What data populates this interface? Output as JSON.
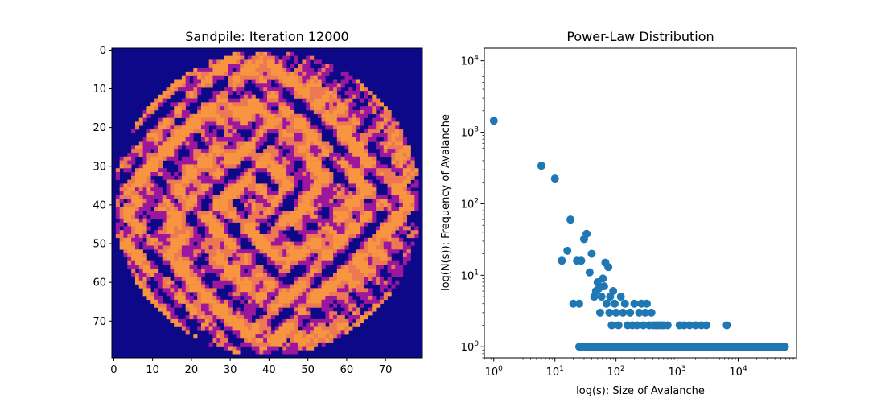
{
  "chart_data": [
    {
      "type": "heatmap",
      "title": "Sandpile: Iteration 12000",
      "grid_size": 80,
      "colormap": "plasma",
      "levels": [
        0,
        1,
        2,
        3
      ],
      "level_colors": [
        "#0d0887",
        "#9c179e",
        "#ed7953",
        "#f89540"
      ],
      "background_color": "#0d0887",
      "disk": {
        "center": [
          40,
          40
        ],
        "radius": 39.5
      },
      "x_ticks": [
        0,
        10,
        20,
        30,
        40,
        50,
        60,
        70
      ],
      "y_ticks": [
        0,
        10,
        20,
        30,
        40,
        50,
        60,
        70
      ],
      "x_tick_labels": [
        "0",
        "10",
        "20",
        "30",
        "40",
        "50",
        "60",
        "70"
      ],
      "y_tick_labels": [
        "0",
        "10",
        "20",
        "30",
        "40",
        "50",
        "60",
        "70"
      ],
      "xlim": [
        -0.5,
        79.5
      ],
      "ylim": [
        79.5,
        -0.5
      ]
    },
    {
      "type": "scatter",
      "title": "Power-Law Distribution",
      "xlabel": "log(s): Size of Avalanche",
      "ylabel": "log(N(s)): Frequency of Avalanche",
      "xscale": "log",
      "yscale": "log",
      "xlim": [
        0.7,
        90000
      ],
      "ylim": [
        0.7,
        15000
      ],
      "grid": false,
      "marker_color": "#1f77b4",
      "x_tick_values": [
        1,
        10,
        100,
        1000,
        10000
      ],
      "x_tick_labels": [
        {
          "base": "10",
          "exp": "0"
        },
        {
          "base": "10",
          "exp": "1"
        },
        {
          "base": "10",
          "exp": "2"
        },
        {
          "base": "10",
          "exp": "3"
        },
        {
          "base": "10",
          "exp": "4"
        }
      ],
      "y_tick_values": [
        1,
        10,
        100,
        1000,
        10000
      ],
      "y_tick_labels": [
        {
          "base": "10",
          "exp": "0"
        },
        {
          "base": "10",
          "exp": "1"
        },
        {
          "base": "10",
          "exp": "2"
        },
        {
          "base": "10",
          "exp": "3"
        },
        {
          "base": "10",
          "exp": "4"
        }
      ],
      "points": [
        [
          1,
          1450
        ],
        [
          6,
          340
        ],
        [
          10,
          225
        ],
        [
          13,
          16
        ],
        [
          16,
          22
        ],
        [
          18,
          60
        ],
        [
          20,
          4
        ],
        [
          23,
          16
        ],
        [
          25,
          4
        ],
        [
          27,
          16
        ],
        [
          30,
          32
        ],
        [
          33,
          38
        ],
        [
          37,
          11
        ],
        [
          40,
          20
        ],
        [
          44,
          5
        ],
        [
          47,
          6
        ],
        [
          50,
          8
        ],
        [
          52,
          6.5
        ],
        [
          55,
          3
        ],
        [
          58,
          5
        ],
        [
          61,
          9
        ],
        [
          64,
          7
        ],
        [
          67,
          15
        ],
        [
          70,
          4
        ],
        [
          75,
          13
        ],
        [
          78,
          3
        ],
        [
          80,
          5
        ],
        [
          85,
          2
        ],
        [
          90,
          6
        ],
        [
          95,
          4
        ],
        [
          100,
          3
        ],
        [
          110,
          2
        ],
        [
          120,
          5
        ],
        [
          130,
          3
        ],
        [
          140,
          4
        ],
        [
          155,
          2
        ],
        [
          170,
          3
        ],
        [
          185,
          2
        ],
        [
          200,
          4
        ],
        [
          220,
          2
        ],
        [
          240,
          3
        ],
        [
          260,
          4
        ],
        [
          280,
          2
        ],
        [
          300,
          3
        ],
        [
          320,
          4
        ],
        [
          350,
          2
        ],
        [
          380,
          3
        ],
        [
          410,
          2
        ],
        [
          450,
          2
        ],
        [
          500,
          2
        ],
        [
          550,
          2
        ],
        [
          600,
          2
        ],
        [
          700,
          2
        ],
        [
          1100,
          2
        ],
        [
          1300,
          2
        ],
        [
          1600,
          2
        ],
        [
          2000,
          2
        ],
        [
          2500,
          2
        ],
        [
          3000,
          2
        ],
        [
          6500,
          2
        ],
        [
          25,
          1
        ],
        [
          28,
          1
        ],
        [
          32,
          1
        ],
        [
          36,
          1
        ],
        [
          40,
          1
        ],
        [
          45,
          1
        ],
        [
          50,
          1
        ],
        [
          55,
          1
        ],
        [
          60,
          1
        ],
        [
          66,
          1
        ],
        [
          72,
          1
        ],
        [
          79,
          1
        ],
        [
          87,
          1
        ],
        [
          95,
          1
        ],
        [
          105,
          1
        ],
        [
          115,
          1
        ],
        [
          126,
          1
        ],
        [
          138,
          1
        ],
        [
          152,
          1
        ],
        [
          167,
          1
        ],
        [
          183,
          1
        ],
        [
          201,
          1
        ],
        [
          221,
          1
        ],
        [
          243,
          1
        ],
        [
          267,
          1
        ],
        [
          293,
          1
        ],
        [
          322,
          1
        ],
        [
          354,
          1
        ],
        [
          389,
          1
        ],
        [
          428,
          1
        ],
        [
          470,
          1
        ],
        [
          517,
          1
        ],
        [
          568,
          1
        ],
        [
          624,
          1
        ],
        [
          686,
          1
        ],
        [
          754,
          1
        ],
        [
          829,
          1
        ],
        [
          911,
          1
        ],
        [
          1001,
          1
        ],
        [
          1100,
          1
        ],
        [
          1209,
          1
        ],
        [
          1329,
          1
        ],
        [
          1460,
          1
        ],
        [
          1605,
          1
        ],
        [
          1764,
          1
        ],
        [
          1939,
          1
        ],
        [
          2131,
          1
        ],
        [
          2342,
          1
        ],
        [
          2574,
          1
        ],
        [
          2829,
          1
        ],
        [
          3109,
          1
        ],
        [
          3417,
          1
        ],
        [
          3755,
          1
        ],
        [
          4127,
          1
        ],
        [
          4536,
          1
        ],
        [
          4985,
          1
        ],
        [
          5479,
          1
        ],
        [
          6022,
          1
        ],
        [
          6618,
          1
        ],
        [
          7274,
          1
        ],
        [
          7994,
          1
        ],
        [
          8786,
          1
        ],
        [
          9656,
          1
        ],
        [
          10613,
          1
        ],
        [
          11664,
          1
        ],
        [
          12819,
          1
        ],
        [
          14089,
          1
        ],
        [
          15484,
          1
        ],
        [
          17018,
          1
        ],
        [
          18704,
          1
        ],
        [
          20556,
          1
        ],
        [
          22592,
          1
        ],
        [
          24830,
          1
        ],
        [
          27290,
          1
        ],
        [
          29993,
          1
        ],
        [
          32964,
          1
        ],
        [
          36229,
          1
        ],
        [
          39818,
          1
        ],
        [
          43762,
          1
        ],
        [
          48097,
          1
        ],
        [
          52861,
          1
        ],
        [
          58097,
          1
        ]
      ]
    }
  ]
}
